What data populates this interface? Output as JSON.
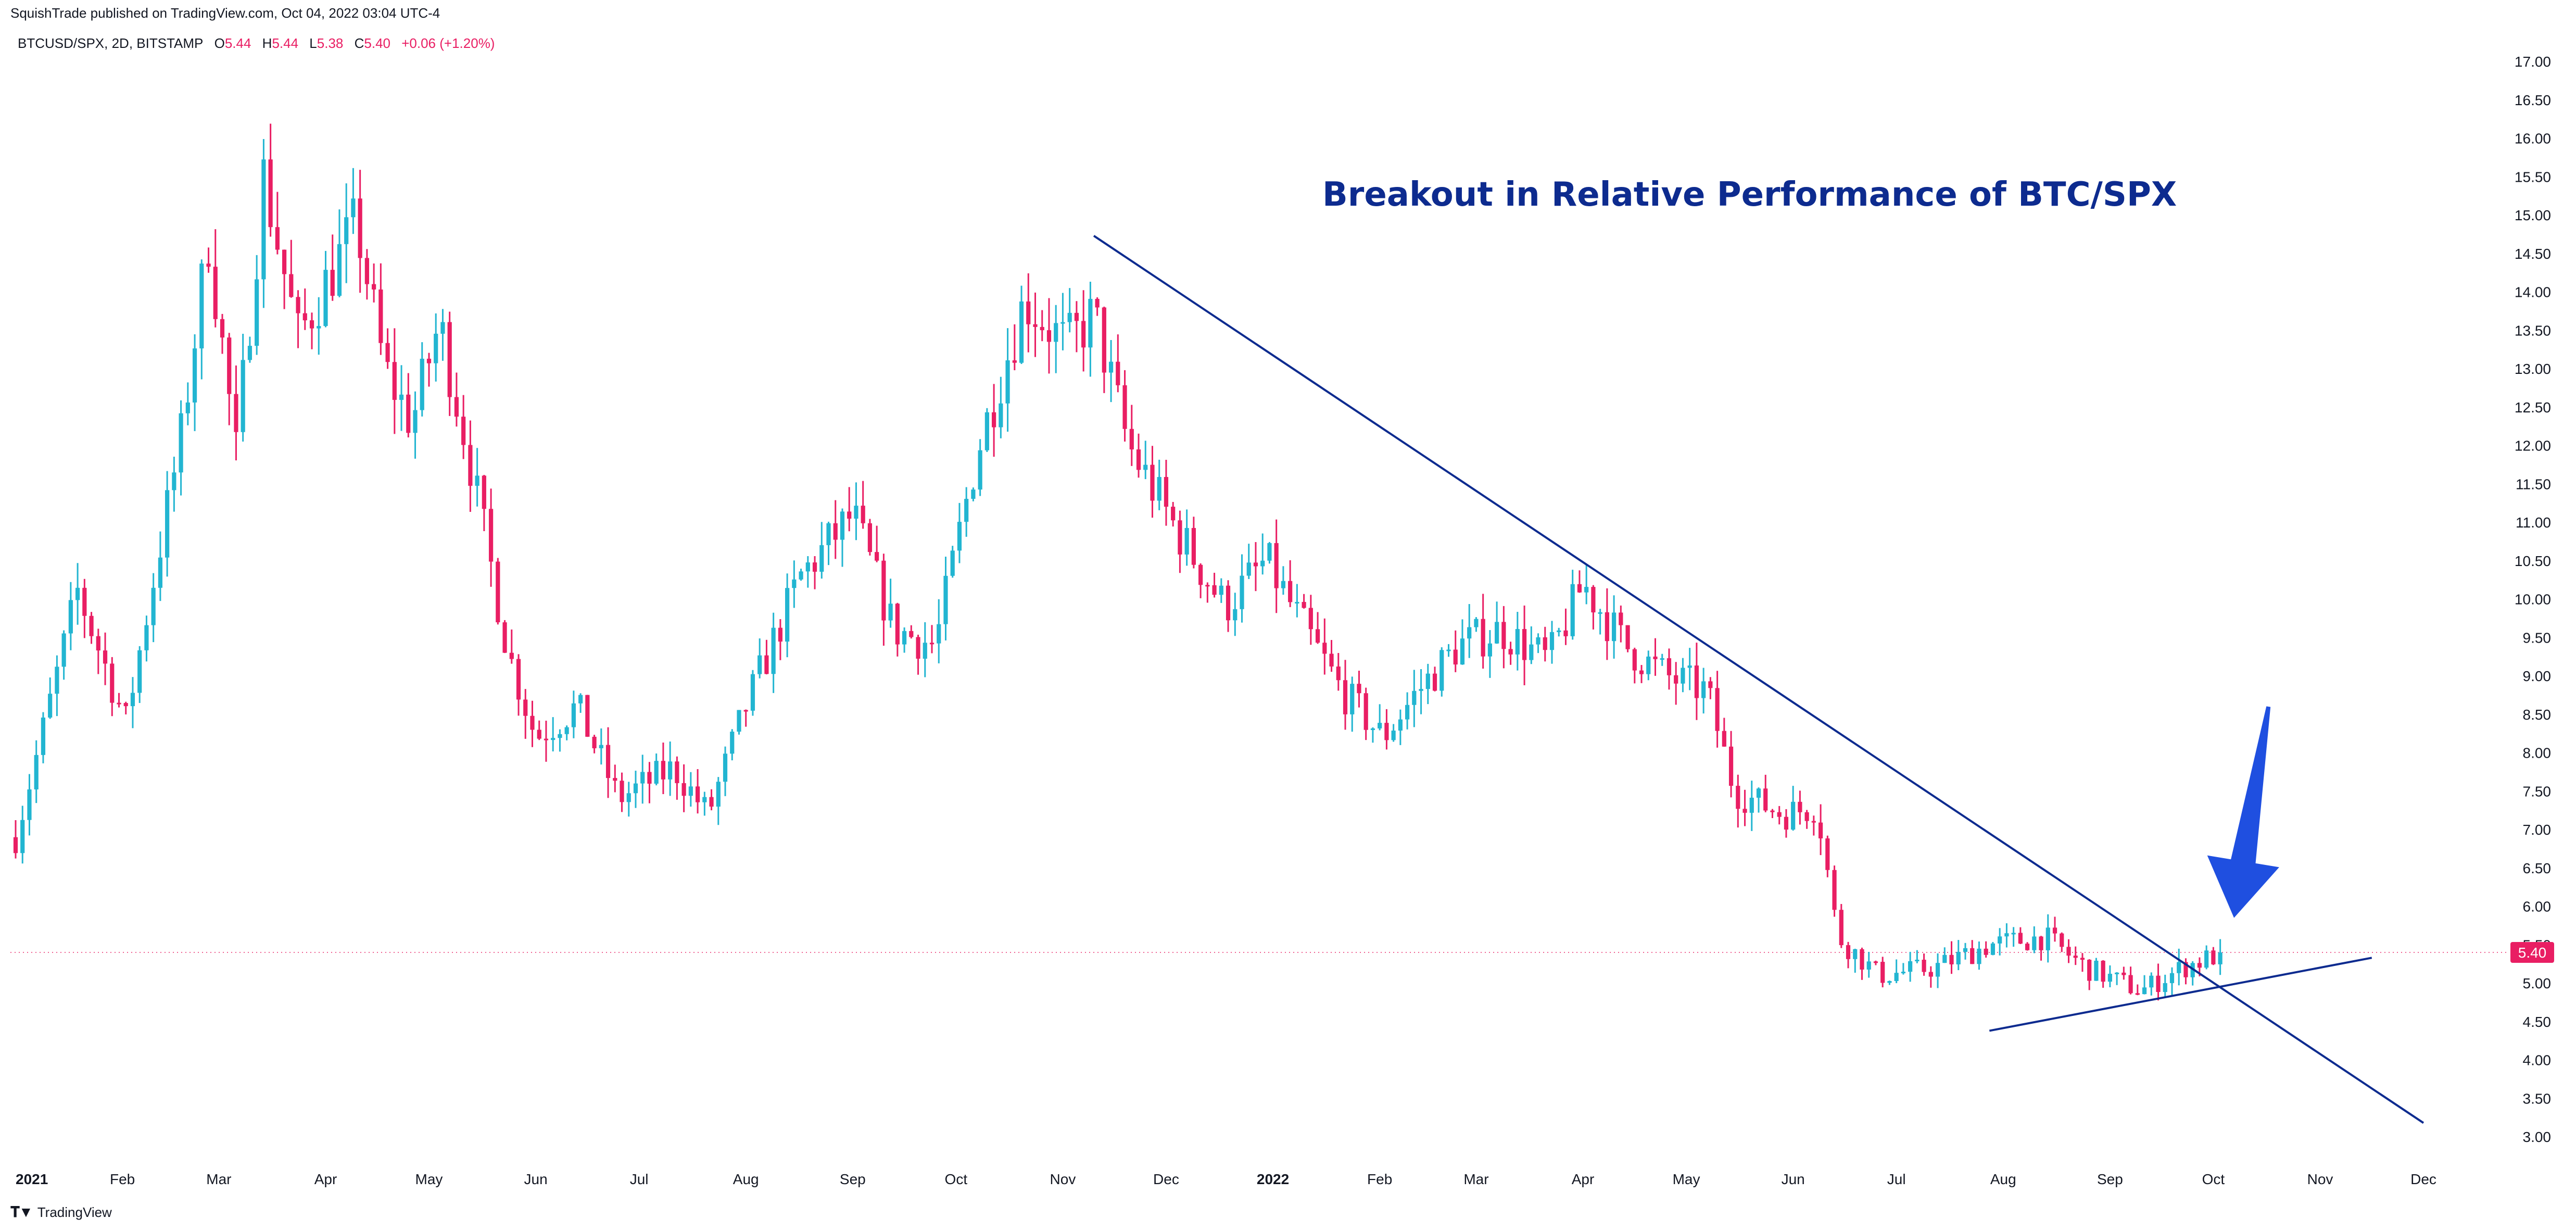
{
  "header": {
    "published": "SquishTrade published on TradingView.com, Oct 04, 2022 03:04 UTC-4"
  },
  "legend": {
    "symbol": "BTCUSD/SPX, 2D, BITSTAMP",
    "open_label": "O",
    "open": "5.44",
    "high_label": "H",
    "high": "5.44",
    "low_label": "L",
    "low": "5.38",
    "close_label": "C",
    "close": "5.40",
    "change": "+0.06 (+1.20%)"
  },
  "footer": {
    "logo_icon": "tradingview-logo-icon",
    "brand": "TradingView"
  },
  "colors": {
    "up": "#22b5d1",
    "down": "#e91e63",
    "trendline": "#0d2b8f",
    "arrow": "#1f4fe0",
    "price_tag": "#e91e63"
  },
  "chart_data": {
    "type": "candlestick",
    "title": "",
    "annotation": "Breakout in Relative Performance of BTC/SPX",
    "ylim": [
      2.8,
      17.3
    ],
    "y_ticks": [
      "3.00",
      "3.50",
      "4.00",
      "4.50",
      "5.00",
      "5.50",
      "6.00",
      "6.50",
      "7.00",
      "7.50",
      "8.00",
      "8.50",
      "9.00",
      "9.50",
      "10.00",
      "10.50",
      "11.00",
      "11.50",
      "12.00",
      "12.50",
      "13.00",
      "13.50",
      "14.00",
      "14.50",
      "15.00",
      "15.50",
      "16.00",
      "16.50",
      "17.00"
    ],
    "x_labels": [
      {
        "label": "2021",
        "date": "2021-01-01",
        "bold": true
      },
      {
        "label": "Feb",
        "date": "2021-02-01"
      },
      {
        "label": "Mar",
        "date": "2021-03-01"
      },
      {
        "label": "Apr",
        "date": "2021-04-01"
      },
      {
        "label": "May",
        "date": "2021-05-01"
      },
      {
        "label": "Jun",
        "date": "2021-06-01"
      },
      {
        "label": "Jul",
        "date": "2021-07-01"
      },
      {
        "label": "Aug",
        "date": "2021-08-01"
      },
      {
        "label": "Sep",
        "date": "2021-09-01"
      },
      {
        "label": "Oct",
        "date": "2021-10-01"
      },
      {
        "label": "Nov",
        "date": "2021-11-01"
      },
      {
        "label": "Dec",
        "date": "2021-12-01"
      },
      {
        "label": "2022",
        "date": "2022-01-01",
        "bold": true
      },
      {
        "label": "Feb",
        "date": "2022-02-01"
      },
      {
        "label": "Mar",
        "date": "2022-03-01"
      },
      {
        "label": "Apr",
        "date": "2022-04-01"
      },
      {
        "label": "May",
        "date": "2022-05-01"
      },
      {
        "label": "Jun",
        "date": "2022-06-01"
      },
      {
        "label": "Jul",
        "date": "2022-07-01"
      },
      {
        "label": "Aug",
        "date": "2022-08-01"
      },
      {
        "label": "Sep",
        "date": "2022-09-01"
      },
      {
        "label": "Oct",
        "date": "2022-10-01"
      },
      {
        "label": "Nov",
        "date": "2022-11-01"
      },
      {
        "label": "Dec",
        "date": "2022-12-01"
      }
    ],
    "last_price": "5.40",
    "last_price_value": 5.4,
    "trendlines": [
      {
        "from": {
          "date": "2021-11-10",
          "value": 14.73
        },
        "to": {
          "date": "2022-12-01",
          "value": 3.18
        }
      },
      {
        "from": {
          "date": "2022-07-28",
          "value": 4.38
        },
        "to": {
          "date": "2022-11-16",
          "value": 5.33
        }
      }
    ],
    "arrow": {
      "tail": {
        "date": "2022-10-17",
        "value": 8.6
      },
      "head": {
        "date": "2022-10-07",
        "value": 5.85
      }
    },
    "path_anchors": [
      [
        "2021-01-01",
        6.9
      ],
      [
        "2021-01-09",
        8.3
      ],
      [
        "2021-01-19",
        10.1
      ],
      [
        "2021-02-02",
        8.4
      ],
      [
        "2021-02-18",
        12.1
      ],
      [
        "2021-02-26",
        14.7
      ],
      [
        "2021-03-06",
        11.9
      ],
      [
        "2021-03-14",
        15.5
      ],
      [
        "2021-03-24",
        13.4
      ],
      [
        "2021-04-10",
        14.9
      ],
      [
        "2021-04-18",
        13.0
      ],
      [
        "2021-04-26",
        12.3
      ],
      [
        "2021-05-04",
        13.6
      ],
      [
        "2021-05-12",
        12.0
      ],
      [
        "2021-05-24",
        9.3
      ],
      [
        "2021-06-01",
        8.2
      ],
      [
        "2021-06-13",
        8.6
      ],
      [
        "2021-06-25",
        7.4
      ],
      [
        "2021-07-11",
        7.8
      ],
      [
        "2021-07-21",
        7.2
      ],
      [
        "2021-08-01",
        8.6
      ],
      [
        "2021-08-17",
        10.3
      ],
      [
        "2021-09-01",
        11.1
      ],
      [
        "2021-09-13",
        9.6
      ],
      [
        "2021-09-25",
        9.4
      ],
      [
        "2021-10-07",
        11.9
      ],
      [
        "2021-10-21",
        13.9
      ],
      [
        "2021-11-02",
        13.3
      ],
      [
        "2021-11-10",
        13.7
      ],
      [
        "2021-11-20",
        12.0
      ],
      [
        "2021-12-04",
        10.9
      ],
      [
        "2021-12-18",
        9.9
      ],
      [
        "2021-12-30",
        10.5
      ],
      [
        "2022-01-09",
        9.7
      ],
      [
        "2022-01-21",
        8.8
      ],
      [
        "2022-02-02",
        8.2
      ],
      [
        "2022-02-12",
        8.8
      ],
      [
        "2022-02-24",
        9.4
      ],
      [
        "2022-03-08",
        9.6
      ],
      [
        "2022-03-22",
        9.2
      ],
      [
        "2022-04-01",
        10.2
      ],
      [
        "2022-04-13",
        9.4
      ],
      [
        "2022-04-25",
        9.0
      ],
      [
        "2022-05-07",
        8.8
      ],
      [
        "2022-05-15",
        7.5
      ],
      [
        "2022-05-29",
        7.2
      ],
      [
        "2022-06-08",
        7.3
      ],
      [
        "2022-06-14",
        5.6
      ],
      [
        "2022-06-26",
        5.1
      ],
      [
        "2022-07-12",
        5.2
      ],
      [
        "2022-07-28",
        5.5
      ],
      [
        "2022-08-13",
        5.6
      ],
      [
        "2022-08-25",
        5.2
      ],
      [
        "2022-09-10",
        4.9
      ],
      [
        "2022-09-22",
        5.2
      ],
      [
        "2022-10-04",
        5.4
      ]
    ]
  }
}
